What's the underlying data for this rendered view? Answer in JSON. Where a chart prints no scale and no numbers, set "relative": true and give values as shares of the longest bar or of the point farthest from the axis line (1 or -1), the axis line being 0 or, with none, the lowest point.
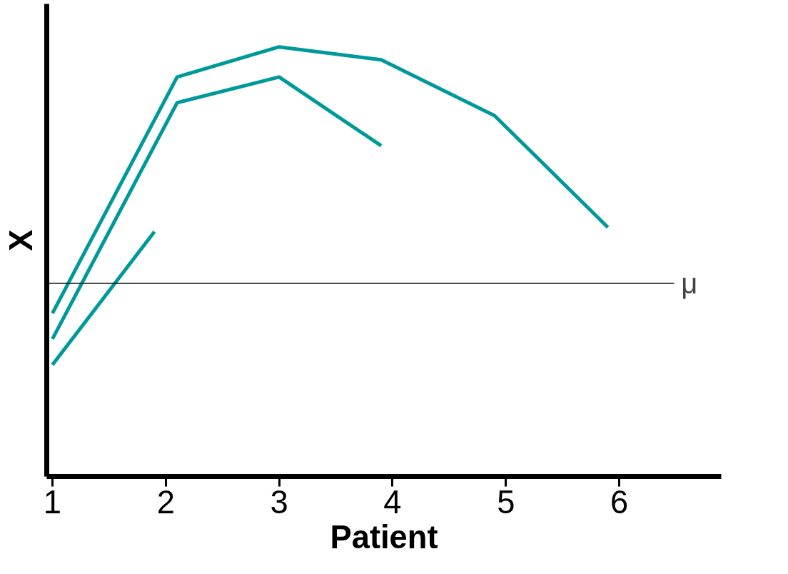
{
  "chart_data": {
    "type": "line",
    "relative": true,
    "xlabel": "Patient",
    "ylabel": "X",
    "xlim": [
      0.95,
      6.9
    ],
    "xticks": [
      1,
      2,
      3,
      4,
      5,
      6
    ],
    "series": [
      {
        "color": "#009999",
        "x": [
          1,
          2.1,
          3,
          3.9,
          4.9,
          5.9
        ],
        "values": [
          0.38,
          0.93,
          1.0,
          0.97,
          0.84,
          0.58
        ]
      },
      {
        "color": "#009999",
        "x": [
          1,
          2.1,
          3,
          3.9
        ],
        "values": [
          0.32,
          0.87,
          0.93,
          0.77
        ]
      },
      {
        "color": "#009999",
        "x": [
          1,
          1.9
        ],
        "values": [
          0.26,
          0.57
        ]
      }
    ],
    "ref_lines": [
      {
        "axis": "y",
        "value": 0.45,
        "label": "μ",
        "color": "#000000"
      }
    ],
    "grid": false,
    "marker": "none",
    "line_style": "solid"
  }
}
